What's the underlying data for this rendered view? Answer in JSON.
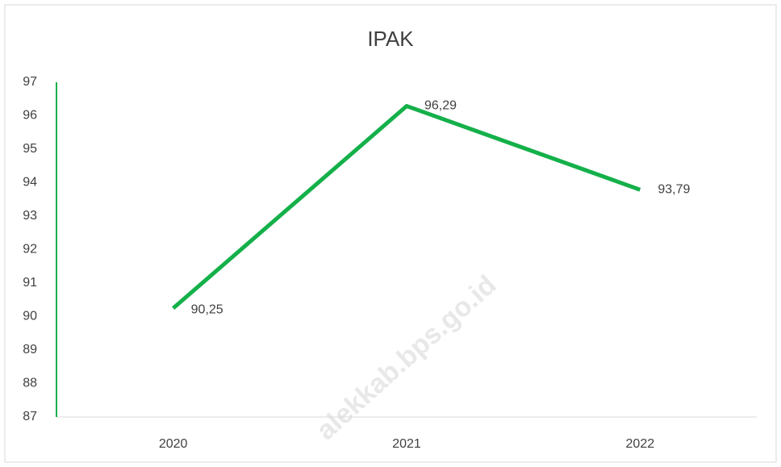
{
  "chart_data": {
    "type": "line",
    "title": "IPAK",
    "categories": [
      "2020",
      "2021",
      "2022"
    ],
    "series": [
      {
        "name": "IPAK",
        "color": "#14b04a",
        "values": [
          90.25,
          96.29,
          93.79
        ],
        "value_labels": [
          "90,25",
          "96,29",
          "93,79"
        ]
      }
    ],
    "ylim": [
      87,
      97
    ],
    "yticks": [
      87,
      88,
      89,
      90,
      91,
      92,
      93,
      94,
      95,
      96,
      97
    ],
    "grid": false,
    "legend": false,
    "watermark": "alekkab.bps.go.id"
  }
}
